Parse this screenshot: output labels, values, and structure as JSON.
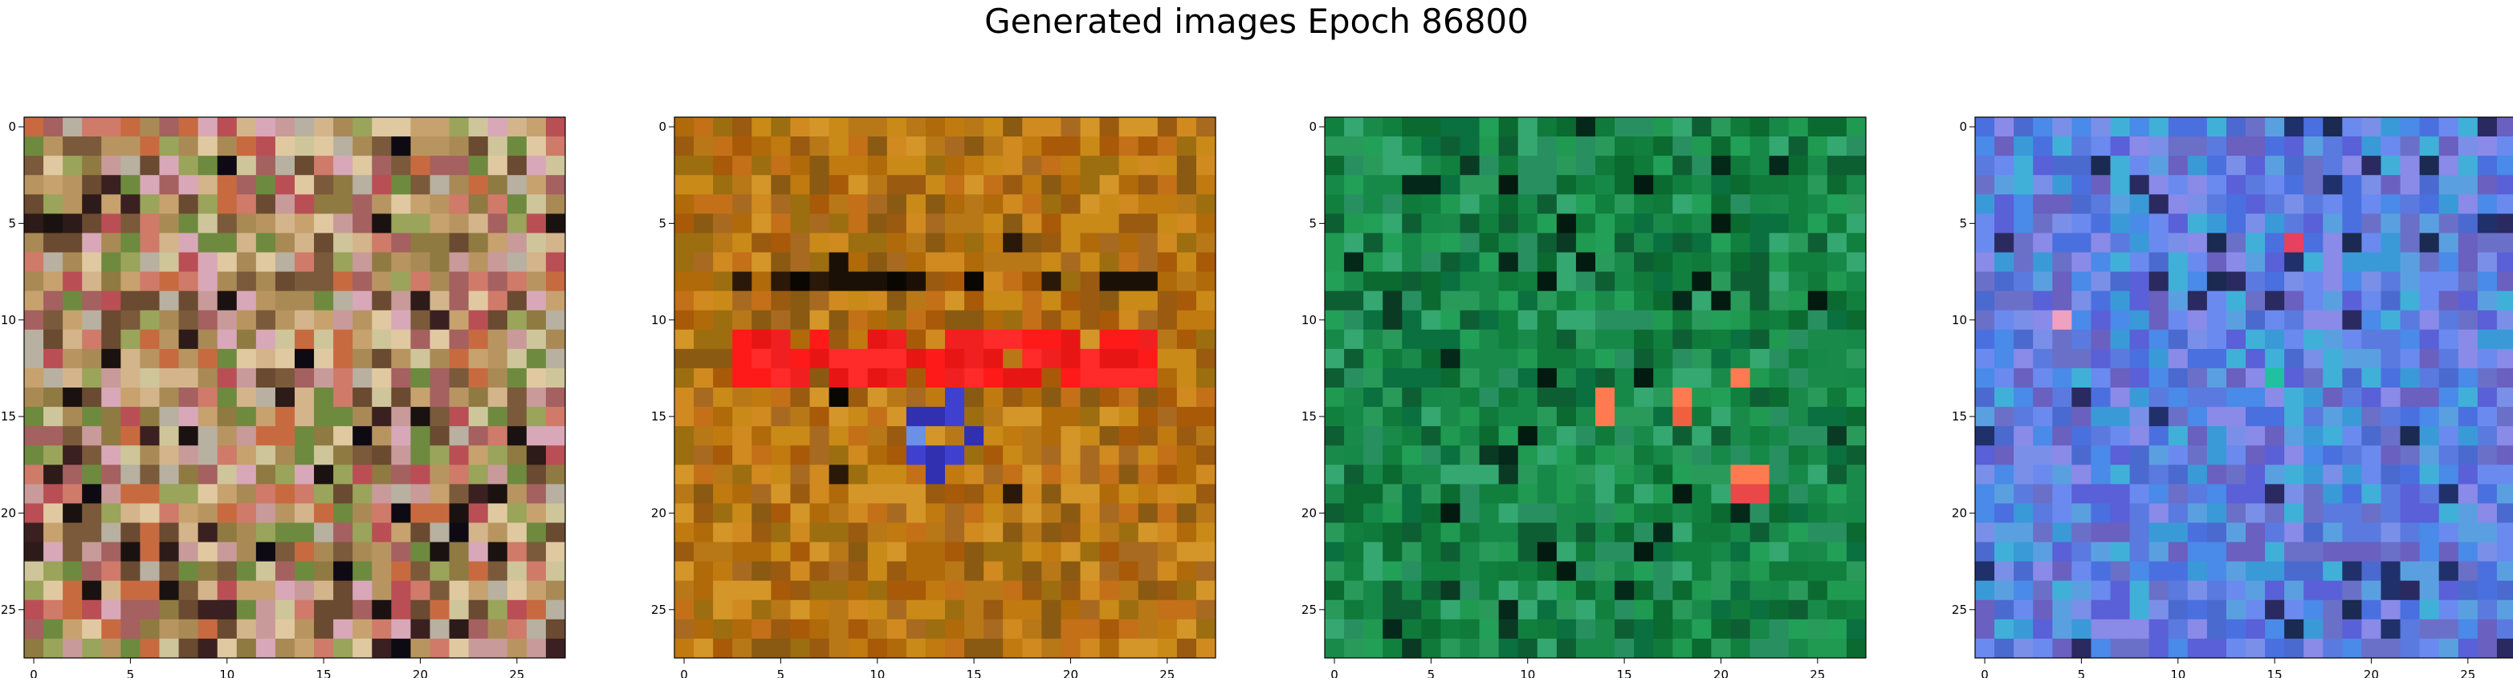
{
  "title": "Generated images Epoch 86800",
  "panels": [
    {
      "name": "panel-1",
      "palette": "mixed",
      "chart_data": {
        "type": "heatmap",
        "grid": [
          28,
          28
        ],
        "xticks": [
          "0",
          "5",
          "10",
          "15",
          "20",
          "25"
        ],
        "yticks": [
          "0",
          "5",
          "10",
          "15",
          "20",
          "25"
        ],
        "xlim": [
          -0.5,
          27.5
        ],
        "ylim": [
          27.5,
          -0.5
        ],
        "description_color": "multicolor noise: tan, olive, pink, brown with scattered dark pixels"
      },
      "colors": [
        "#b89560",
        "#a98a55",
        "#c7a26e",
        "#8f7a42",
        "#d07a6a",
        "#b94f55",
        "#9aa45a",
        "#6e8a3f",
        "#d4b48a",
        "#c99a9a",
        "#7a5a3a",
        "#e0c9a0",
        "#c86a40",
        "#a56060",
        "#b8b0a0",
        "#d8a8b8",
        "#6a4a30",
        "#cfc59a"
      ],
      "dark": [
        "#1a1210",
        "#2c1b18",
        "#0e0a14",
        "#3a2020"
      ]
    },
    {
      "name": "panel-2",
      "palette": "orange",
      "chart_data": {
        "type": "heatmap",
        "grid": [
          28,
          28
        ],
        "xticks": [
          "0",
          "5",
          "10",
          "15",
          "20",
          "25"
        ],
        "yticks": [
          "0",
          "5",
          "10",
          "15",
          "20",
          "25"
        ],
        "xlim": [
          -0.5,
          27.5
        ],
        "ylim": [
          27.5,
          -0.5
        ],
        "description_color": "orange/brown texture with red horizontal band around rows 11-13"
      },
      "colors": [
        "#c07a10",
        "#b06a0a",
        "#a85a08",
        "#c98a18",
        "#9a5a10",
        "#d08a20",
        "#b87818",
        "#8a5a12",
        "#c47018",
        "#a86a20",
        "#d49628",
        "#9c6e10"
      ],
      "accent": [
        "#ff1a1a",
        "#f02020",
        "#e81515",
        "#ff2a2a"
      ],
      "dark": [
        "#0a0602",
        "#1a1006",
        "#2a1808"
      ],
      "blue": [
        "#4040d0",
        "#6a90e8",
        "#3030b0"
      ]
    },
    {
      "name": "panel-3",
      "palette": "green",
      "chart_data": {
        "type": "heatmap",
        "grid": [
          28,
          28
        ],
        "xticks": [
          "0",
          "5",
          "10",
          "15",
          "20",
          "25"
        ],
        "yticks": [
          "0",
          "5",
          "10",
          "15",
          "20",
          "25"
        ],
        "xlim": [
          -0.5,
          27.5
        ],
        "ylim": [
          27.5,
          -0.5
        ],
        "description_color": "green texture with a few orange/red pixels"
      },
      "colors": [
        "#1a8a4a",
        "#0f7a3a",
        "#2a9a5a",
        "#0a6a30",
        "#1f9a50",
        "#11803e",
        "#289060",
        "#0e5e34",
        "#34a870",
        "#168848",
        "#0a7040",
        "#22a058"
      ],
      "accent": [
        "#f06040",
        "#e84848",
        "#ff7a50"
      ],
      "dark": [
        "#04281a",
        "#0a3a24",
        "#021a10"
      ]
    },
    {
      "name": "panel-4",
      "palette": "blue",
      "chart_data": {
        "type": "heatmap",
        "grid": [
          28,
          28
        ],
        "xticks": [
          "0",
          "5",
          "10",
          "15",
          "20",
          "25"
        ],
        "yticks": [
          "0",
          "5",
          "10",
          "15",
          "20",
          "25"
        ],
        "xlim": [
          -0.5,
          27.5
        ],
        "ylim": [
          27.5,
          -0.5
        ],
        "description_color": "blue/purple/cyan texture with sparse bright pixels"
      },
      "colors": [
        "#5a7ae0",
        "#6a8af0",
        "#4a6ad0",
        "#7a90e8",
        "#5a60d8",
        "#3a9ad8",
        "#6a70c8",
        "#4a8ae8",
        "#8a8ae8",
        "#5aa0e0",
        "#6a60c0",
        "#4a70e0",
        "#40b0d8"
      ],
      "accent": [
        "#e84060",
        "#f0a0c0",
        "#20c0a0"
      ],
      "dark": [
        "#20306a",
        "#2a2a60",
        "#1a2a50"
      ]
    }
  ]
}
